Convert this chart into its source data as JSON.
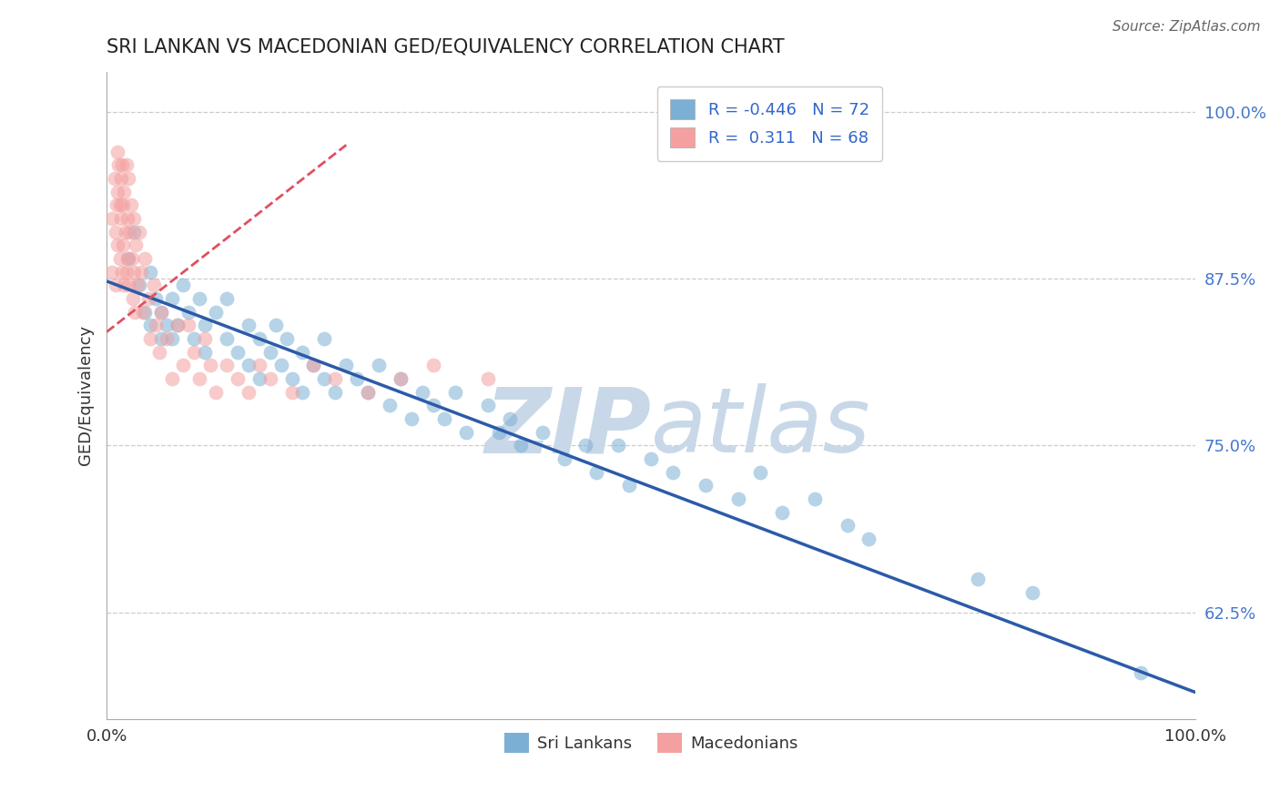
{
  "title": "SRI LANKAN VS MACEDONIAN GED/EQUIVALENCY CORRELATION CHART",
  "source_text": "Source: ZipAtlas.com",
  "ylabel": "GED/Equivalency",
  "xmin": 0.0,
  "xmax": 1.0,
  "ymin": 0.545,
  "ymax": 1.03,
  "yticks": [
    0.625,
    0.75,
    0.875,
    1.0
  ],
  "ytick_labels": [
    "62.5%",
    "75.0%",
    "87.5%",
    "100.0%"
  ],
  "xtick_labels": [
    "0.0%",
    "100.0%"
  ],
  "xticks": [
    0.0,
    1.0
  ],
  "blue_color": "#7BAFD4",
  "pink_color": "#F4A0A0",
  "blue_line_color": "#2B5BA8",
  "pink_line_color": "#E05060",
  "legend_R_blue": "R = -0.446",
  "legend_N_blue": "N = 72",
  "legend_R_pink": "R =  0.311",
  "legend_N_pink": "N = 68",
  "watermark_color": "#C8D8E8",
  "grid_color": "#CCCCCC",
  "blue_line_x0": 0.0,
  "blue_line_y0": 0.873,
  "blue_line_x1": 1.0,
  "blue_line_y1": 0.565,
  "pink_line_x0": 0.0,
  "pink_line_y0": 0.835,
  "pink_line_x1": 0.22,
  "pink_line_y1": 0.975,
  "blue_scatter_x": [
    0.02,
    0.025,
    0.03,
    0.035,
    0.04,
    0.04,
    0.045,
    0.05,
    0.05,
    0.055,
    0.06,
    0.06,
    0.065,
    0.07,
    0.075,
    0.08,
    0.085,
    0.09,
    0.09,
    0.1,
    0.11,
    0.11,
    0.12,
    0.13,
    0.13,
    0.14,
    0.14,
    0.15,
    0.155,
    0.16,
    0.165,
    0.17,
    0.18,
    0.18,
    0.19,
    0.2,
    0.2,
    0.21,
    0.22,
    0.23,
    0.24,
    0.25,
    0.26,
    0.27,
    0.28,
    0.29,
    0.3,
    0.31,
    0.32,
    0.33,
    0.35,
    0.36,
    0.37,
    0.38,
    0.4,
    0.42,
    0.44,
    0.45,
    0.47,
    0.48,
    0.5,
    0.52,
    0.55,
    0.58,
    0.6,
    0.62,
    0.65,
    0.68,
    0.7,
    0.8,
    0.85,
    0.95
  ],
  "blue_scatter_y": [
    0.89,
    0.91,
    0.87,
    0.85,
    0.88,
    0.84,
    0.86,
    0.85,
    0.83,
    0.84,
    0.86,
    0.83,
    0.84,
    0.87,
    0.85,
    0.83,
    0.86,
    0.84,
    0.82,
    0.85,
    0.83,
    0.86,
    0.82,
    0.84,
    0.81,
    0.83,
    0.8,
    0.82,
    0.84,
    0.81,
    0.83,
    0.8,
    0.82,
    0.79,
    0.81,
    0.83,
    0.8,
    0.79,
    0.81,
    0.8,
    0.79,
    0.81,
    0.78,
    0.8,
    0.77,
    0.79,
    0.78,
    0.77,
    0.79,
    0.76,
    0.78,
    0.76,
    0.77,
    0.75,
    0.76,
    0.74,
    0.75,
    0.73,
    0.75,
    0.72,
    0.74,
    0.73,
    0.72,
    0.71,
    0.73,
    0.7,
    0.71,
    0.69,
    0.68,
    0.65,
    0.64,
    0.58
  ],
  "pink_scatter_x": [
    0.005,
    0.005,
    0.007,
    0.008,
    0.008,
    0.009,
    0.01,
    0.01,
    0.01,
    0.011,
    0.012,
    0.012,
    0.013,
    0.013,
    0.014,
    0.014,
    0.015,
    0.015,
    0.016,
    0.016,
    0.017,
    0.018,
    0.018,
    0.019,
    0.019,
    0.02,
    0.02,
    0.021,
    0.022,
    0.023,
    0.024,
    0.025,
    0.025,
    0.026,
    0.027,
    0.028,
    0.03,
    0.032,
    0.033,
    0.035,
    0.038,
    0.04,
    0.043,
    0.045,
    0.048,
    0.05,
    0.055,
    0.06,
    0.065,
    0.07,
    0.075,
    0.08,
    0.085,
    0.09,
    0.095,
    0.1,
    0.11,
    0.12,
    0.13,
    0.14,
    0.15,
    0.17,
    0.19,
    0.21,
    0.24,
    0.27,
    0.3,
    0.35
  ],
  "pink_scatter_y": [
    0.92,
    0.88,
    0.95,
    0.91,
    0.87,
    0.93,
    0.97,
    0.94,
    0.9,
    0.96,
    0.93,
    0.89,
    0.95,
    0.92,
    0.96,
    0.88,
    0.93,
    0.9,
    0.87,
    0.94,
    0.91,
    0.96,
    0.88,
    0.92,
    0.89,
    0.95,
    0.87,
    0.91,
    0.93,
    0.89,
    0.86,
    0.92,
    0.88,
    0.85,
    0.9,
    0.87,
    0.91,
    0.88,
    0.85,
    0.89,
    0.86,
    0.83,
    0.87,
    0.84,
    0.82,
    0.85,
    0.83,
    0.8,
    0.84,
    0.81,
    0.84,
    0.82,
    0.8,
    0.83,
    0.81,
    0.79,
    0.81,
    0.8,
    0.79,
    0.81,
    0.8,
    0.79,
    0.81,
    0.8,
    0.79,
    0.8,
    0.81,
    0.8
  ]
}
